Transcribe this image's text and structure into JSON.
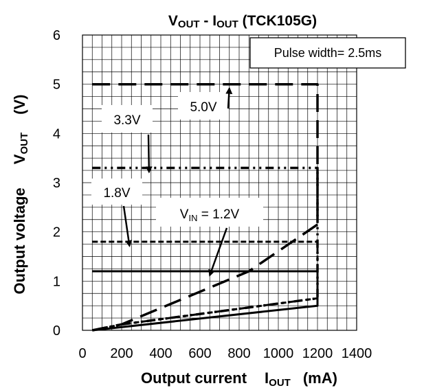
{
  "chart_data": {
    "type": "line",
    "title": {
      "main": "V",
      "sub1": "OUT",
      "mid": " - I",
      "sub2": "OUT",
      "tail": " (TCK105G)"
    },
    "xlabel": {
      "text": "Output current",
      "sym": "I",
      "sub": "OUT",
      "unit": "(mA)"
    },
    "ylabel": {
      "text": "Output voltage",
      "sym": "V",
      "sub": "OUT",
      "unit": "(V)"
    },
    "xlim": [
      0,
      1400
    ],
    "ylim": [
      0,
      6
    ],
    "x_ticks": [
      "0",
      "200",
      "400",
      "600",
      "800",
      "1000",
      "1200",
      "1400"
    ],
    "y_ticks": [
      "0",
      "1",
      "2",
      "3",
      "4",
      "5",
      "6"
    ],
    "grid": true,
    "annotation_box": "Pulse width= 2.5ms",
    "series": [
      {
        "name": "5.0V",
        "dash": "long-dash",
        "points": [
          [
            50,
            5.0
          ],
          [
            1200,
            5.0
          ],
          [
            1200,
            2.15
          ],
          [
            850,
            1.2
          ],
          [
            200,
            0.12
          ],
          [
            50,
            0
          ]
        ]
      },
      {
        "name": "3.3V",
        "dash": "dash-dot-dot",
        "points": [
          [
            50,
            3.3
          ],
          [
            1200,
            3.3
          ],
          [
            1200,
            0.65
          ],
          [
            200,
            0.12
          ],
          [
            50,
            0
          ]
        ]
      },
      {
        "name": "1.8V",
        "dash": "short-dash",
        "points": [
          [
            50,
            1.8
          ],
          [
            1200,
            1.8
          ],
          [
            1200,
            0.65
          ],
          [
            200,
            0.12
          ],
          [
            50,
            0
          ]
        ]
      },
      {
        "name_prefix": "V",
        "name_sub": "IN",
        "name_suffix": " = 1.2V",
        "dash": "solid",
        "points": [
          [
            50,
            1.2
          ],
          [
            1200,
            1.2
          ],
          [
            1200,
            0.5
          ],
          [
            50,
            0
          ]
        ]
      }
    ],
    "labels": [
      "5.0V",
      "3.3V",
      "1.8V",
      "V",
      "IN",
      " = 1.2V"
    ],
    "label_targets": [
      [
        750,
        5.0
      ],
      [
        340,
        3.3
      ],
      [
        240,
        1.8
      ],
      [
        650,
        1.2
      ]
    ]
  }
}
